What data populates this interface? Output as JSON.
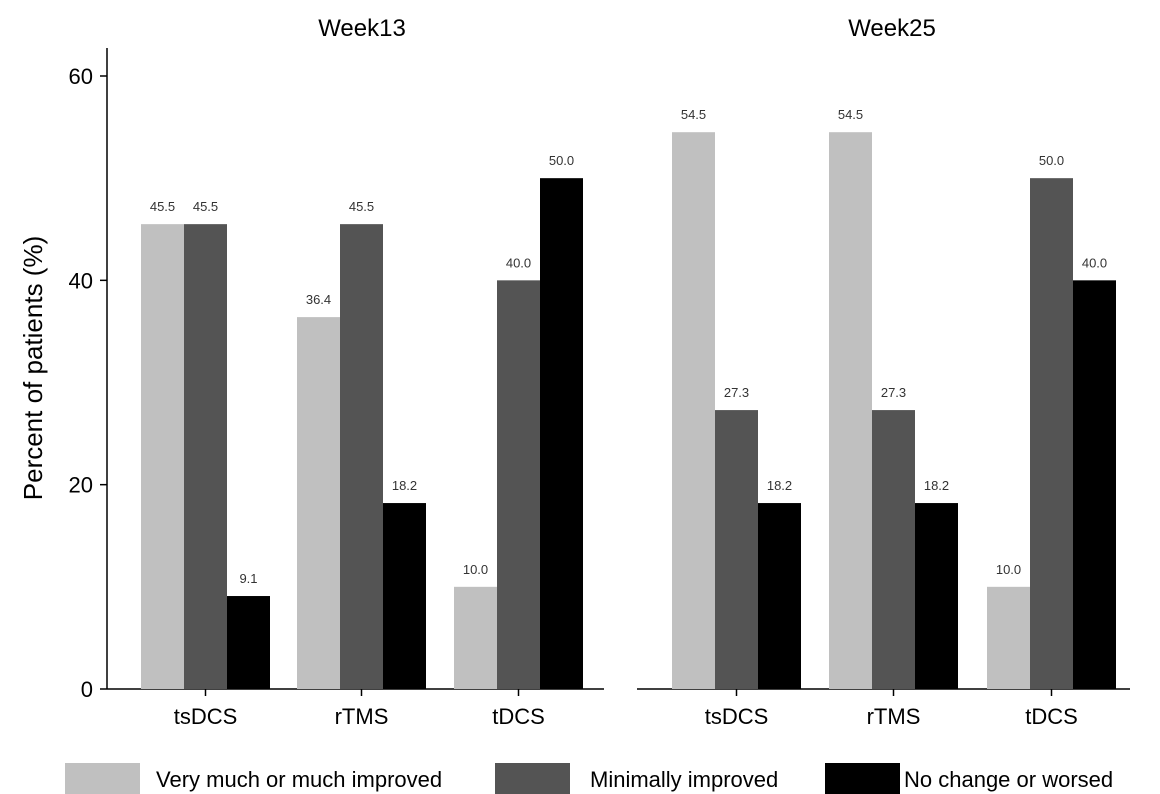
{
  "chart_data": {
    "type": "bar",
    "ylabel": "Percent of patients (%)",
    "ylim": [
      0,
      60
    ],
    "yticks": [
      "0",
      "20",
      "40",
      "60"
    ],
    "grid": false,
    "legend_position": "bottom",
    "series": [
      {
        "name": "Very much or much improved",
        "color": "#c0c0c0"
      },
      {
        "name": "Minimally improved",
        "color": "#545454"
      },
      {
        "name": "No change or worsed",
        "color": "#000000"
      }
    ],
    "panels": [
      {
        "title": "Week13",
        "categories": [
          "tsDCS",
          "rTMS",
          "tDCS"
        ],
        "values": [
          [
            45.5,
            45.5,
            9.1
          ],
          [
            36.4,
            45.5,
            18.2
          ],
          [
            10.0,
            40.0,
            50.0
          ]
        ],
        "labels": [
          [
            "45.5",
            "45.5",
            "9.1"
          ],
          [
            "36.4",
            "45.5",
            "18.2"
          ],
          [
            "10.0",
            "40.0",
            "50.0"
          ]
        ]
      },
      {
        "title": "Week25",
        "categories": [
          "tsDCS",
          "rTMS",
          "tDCS"
        ],
        "values": [
          [
            54.5,
            27.3,
            18.2
          ],
          [
            54.5,
            27.3,
            18.2
          ],
          [
            10.0,
            50.0,
            40.0
          ]
        ],
        "labels": [
          [
            "54.5",
            "27.3",
            "18.2"
          ],
          [
            "54.5",
            "27.3",
            "18.2"
          ],
          [
            "10.0",
            "50.0",
            "40.0"
          ]
        ]
      }
    ]
  }
}
